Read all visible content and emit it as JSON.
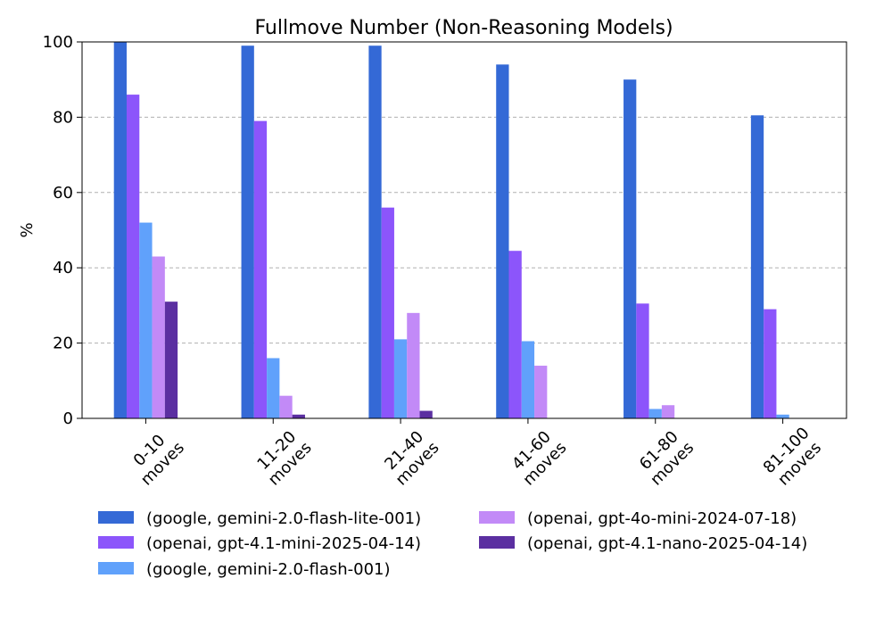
{
  "chart_data": {
    "type": "bar",
    "title": "Fullmove Number (Non-Reasoning Models)",
    "xlabel": "",
    "ylabel": "%",
    "ylim": [
      0,
      100
    ],
    "yticks": [
      0,
      20,
      40,
      60,
      80,
      100
    ],
    "grid": "horizontal dashed",
    "legend_placement": "bottom-center",
    "categories": [
      [
        "0-10",
        "moves"
      ],
      [
        "11-20",
        "moves"
      ],
      [
        "21-40",
        "moves"
      ],
      [
        "41-60",
        "moves"
      ],
      [
        "61-80",
        "moves"
      ],
      [
        "81-100",
        "moves"
      ]
    ],
    "series": [
      {
        "name": "(google, gemini-2.0-flash-lite-001)",
        "color": "#3469d6",
        "values": [
          100,
          99,
          99,
          94,
          90,
          80.5
        ]
      },
      {
        "name": "(openai, gpt-4.1-mini-2025-04-14)",
        "color": "#8c55fb",
        "values": [
          86,
          79,
          56,
          44.5,
          30.5,
          29
        ]
      },
      {
        "name": "(google, gemini-2.0-flash-001)",
        "color": "#60a1fb",
        "values": [
          52,
          16,
          21,
          20.5,
          2.5,
          1
        ]
      },
      {
        "name": "(openai, gpt-4o-mini-2024-07-18)",
        "color": "#c28af7",
        "values": [
          43,
          6,
          28,
          14,
          3.5,
          0
        ]
      },
      {
        "name": "(openai, gpt-4.1-nano-2025-04-14)",
        "color": "#5b2fa1",
        "values": [
          31,
          1,
          2,
          0,
          0,
          0
        ]
      }
    ]
  }
}
